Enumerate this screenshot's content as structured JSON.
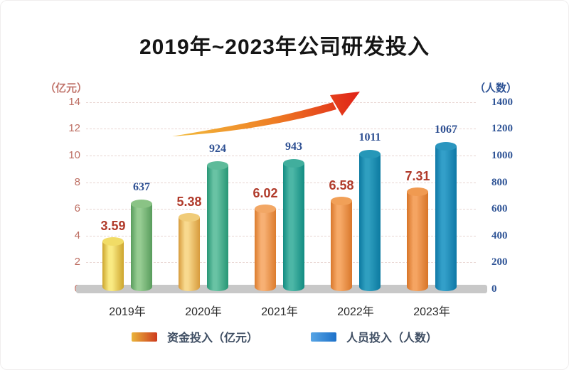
{
  "title": "2019年~2023年公司研发投入",
  "axes": {
    "left": {
      "caption": "（亿元）",
      "ticks": [
        14,
        12,
        10,
        8,
        6,
        4,
        2,
        0
      ],
      "tick_color": "#bd6e62",
      "caption_color": "#c0736a"
    },
    "right": {
      "caption": "（人数）",
      "ticks": [
        1400,
        1200,
        1000,
        800,
        600,
        400,
        200,
        0
      ],
      "tick_color": "#2f5496",
      "caption_color": "#2f5496"
    }
  },
  "legend": {
    "text_color": "#3f4e63",
    "items": [
      {
        "label": "资金投入（亿元）",
        "swatch_from": "#eab53c",
        "swatch_to": "#cd3a1d"
      },
      {
        "label": "人员投入（人数）",
        "swatch_from": "#57a5e5",
        "swatch_to": "#1d71c9"
      }
    ]
  },
  "decorations": {
    "trend_arrow": {
      "kind": "rising-swoosh-arrow",
      "from_color": "#f3c13f",
      "mid_color": "#ee7d24",
      "to_color": "#e02318"
    }
  },
  "chart_data": {
    "type": "bar",
    "title": "2019年~2023年公司研发投入",
    "categories": [
      "2019年",
      "2020年",
      "2021年",
      "2022年",
      "2023年"
    ],
    "series": [
      {
        "name": "资金投入（亿元）",
        "axis": "left",
        "values": [
          3.59,
          5.38,
          6.02,
          6.58,
          7.31
        ],
        "label_color": "#b03a2a",
        "bar_styles": [
          {
            "light": "#f9ea82",
            "dark": "#cda52e",
            "cap": "#f1dc66"
          },
          {
            "light": "#f8d98e",
            "dark": "#d79b3c",
            "cap": "#f0cc79"
          },
          {
            "light": "#f7b074",
            "dark": "#dc7c2d",
            "cap": "#f2a765"
          },
          {
            "light": "#f6a967",
            "dark": "#d9772b",
            "cap": "#f1a058"
          },
          {
            "light": "#f5a462",
            "dark": "#d77427",
            "cap": "#f09a51"
          }
        ]
      },
      {
        "name": "人员投入（人数）",
        "axis": "right",
        "values": [
          637,
          924,
          943,
          1011,
          1067
        ],
        "label_color": "#2d4f92",
        "bar_styles": [
          {
            "light": "#96cc92",
            "dark": "#589c5c",
            "cap": "#8ac385"
          },
          {
            "light": "#69c3a4",
            "dark": "#279675",
            "cap": "#5dbb9a"
          },
          {
            "light": "#4cb6a6",
            "dark": "#128c82",
            "cap": "#41ae9d"
          },
          {
            "light": "#2f9fc0",
            "dark": "#0c7aa0",
            "cap": "#2697b8"
          },
          {
            "light": "#339fc9",
            "dark": "#0f78a6",
            "cap": "#2b96bf"
          }
        ]
      }
    ],
    "left_ylim": [
      0,
      14
    ],
    "right_ylim": [
      0,
      1400
    ],
    "grid": "horizontal-dashed",
    "legend_position": "bottom",
    "x_label_color": "#2b2b2b",
    "baseline_floor_color": "#c8c8c8"
  }
}
